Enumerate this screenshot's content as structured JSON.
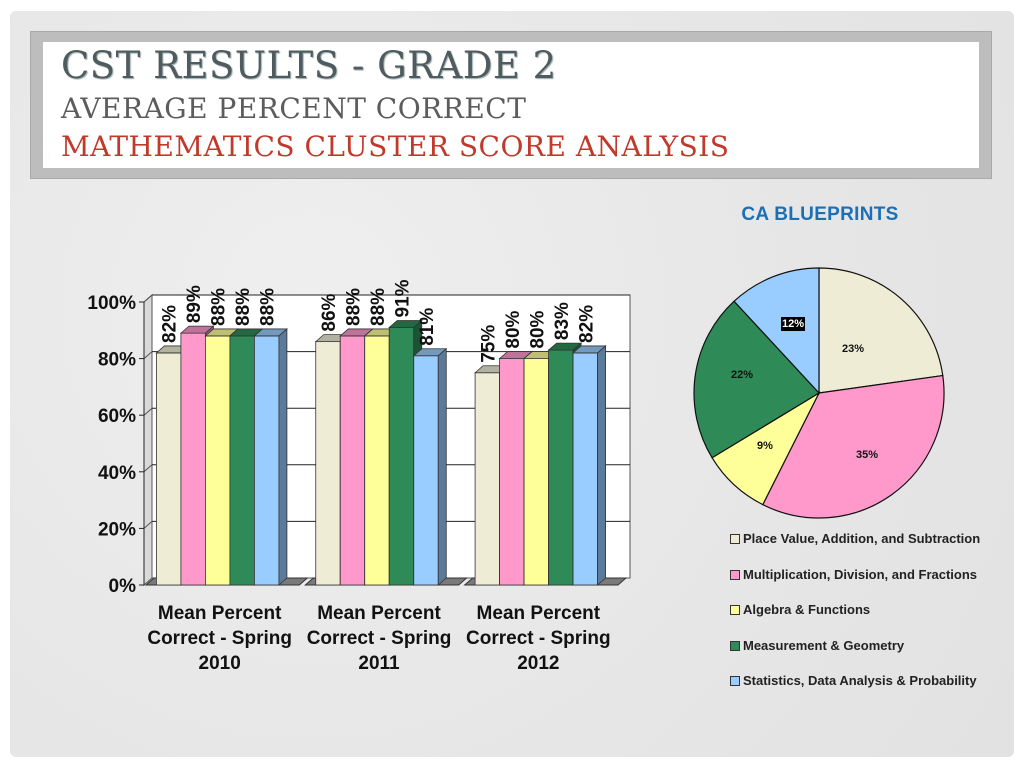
{
  "slide_title": {
    "line1": "CST RESULTS - GRADE 2",
    "line2": "AVERAGE PERCENT CORRECT",
    "line3": "MATHEMATICS CLUSTER SCORE ANALYSIS"
  },
  "colors": {
    "place_value": "#eeecd4",
    "multiplication": "#ff99cc",
    "algebra": "#ffff99",
    "measurement": "#2e8b57",
    "statistics": "#99ccff",
    "title3_red": "#c0392b",
    "pie_title_blue": "#1a6fb6"
  },
  "chart_data": [
    {
      "type": "bar",
      "categories": [
        [
          "Mean Percent",
          "Correct - Spring",
          "2010"
        ],
        [
          "Mean Percent",
          "Correct - Spring",
          "2011"
        ],
        [
          "Mean Percent",
          "Correct - Spring",
          "2012"
        ]
      ],
      "series": [
        {
          "color_key": "place_value",
          "values": [
            82,
            86,
            75
          ]
        },
        {
          "color_key": "multiplication",
          "values": [
            89,
            88,
            80
          ]
        },
        {
          "color_key": "algebra",
          "values": [
            88,
            88,
            80
          ]
        },
        {
          "color_key": "measurement",
          "values": [
            88,
            91,
            83
          ]
        },
        {
          "color_key": "statistics",
          "values": [
            88,
            81,
            82
          ]
        }
      ],
      "ylim": [
        0,
        100
      ],
      "yticks": [
        "0%",
        "20%",
        "40%",
        "60%",
        "80%",
        "100%"
      ],
      "value_suffix": "%",
      "grid": true
    },
    {
      "type": "pie",
      "title": "CA BLUEPRINTS",
      "slices": [
        {
          "name": "Place Value, Addition, and Subtraction",
          "value": 23,
          "label": "23%",
          "color_key": "place_value"
        },
        {
          "name": "Multiplication, Division, and Fractions",
          "value": 35,
          "label": "35%",
          "color_key": "multiplication"
        },
        {
          "name": "Algebra & Functions",
          "value": 9,
          "label": "9%",
          "color_key": "algebra"
        },
        {
          "name": "Measurement & Geometry",
          "value": 22,
          "label": "22%",
          "color_key": "measurement"
        },
        {
          "name": "Statistics, Data Analysis & Probability",
          "value": 12,
          "label": "12%",
          "color_key": "statistics"
        }
      ],
      "legend": "bottom"
    }
  ]
}
